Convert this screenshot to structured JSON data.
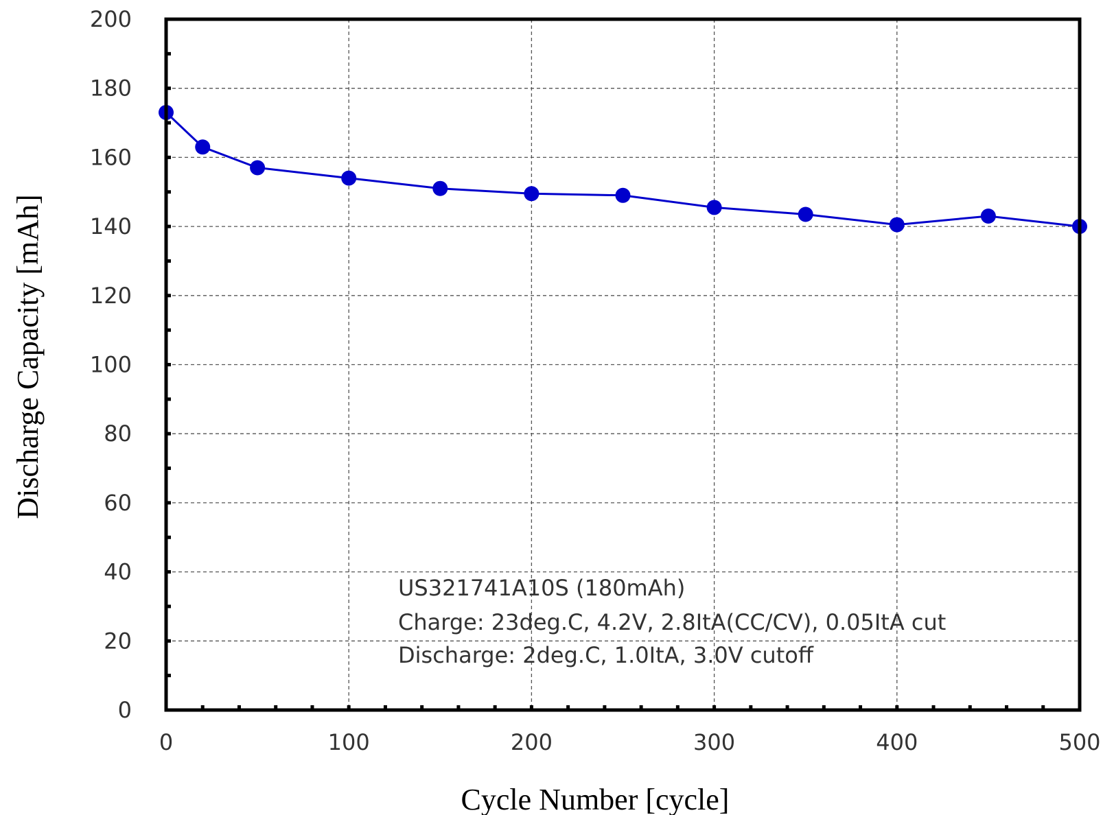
{
  "chart_data": {
    "type": "line",
    "xlabel": "Cycle Number [cycle]",
    "ylabel": "Discharge Capacity [mAh]",
    "xlim": [
      0,
      500
    ],
    "ylim": [
      0,
      200
    ],
    "xticks": [
      0,
      100,
      200,
      300,
      400,
      500
    ],
    "yticks": [
      0,
      20,
      40,
      60,
      80,
      100,
      120,
      140,
      160,
      180,
      200
    ],
    "grid": true,
    "series": [
      {
        "color": "#0000cc",
        "marker": "circle",
        "x": [
          0,
          20,
          50,
          100,
          150,
          200,
          250,
          300,
          350,
          400,
          450,
          500
        ],
        "y": [
          173,
          163,
          157,
          154,
          151,
          149.5,
          149,
          145.5,
          143.5,
          140.5,
          143,
          140
        ]
      }
    ],
    "annotations": [
      "US321741A10S (180mAh)",
      "Charge: 23deg.C, 4.2V, 2.8ItA(CC/CV), 0.05ItA cut",
      "Discharge: 2deg.C, 1.0ItA, 3.0V cutoff"
    ]
  }
}
